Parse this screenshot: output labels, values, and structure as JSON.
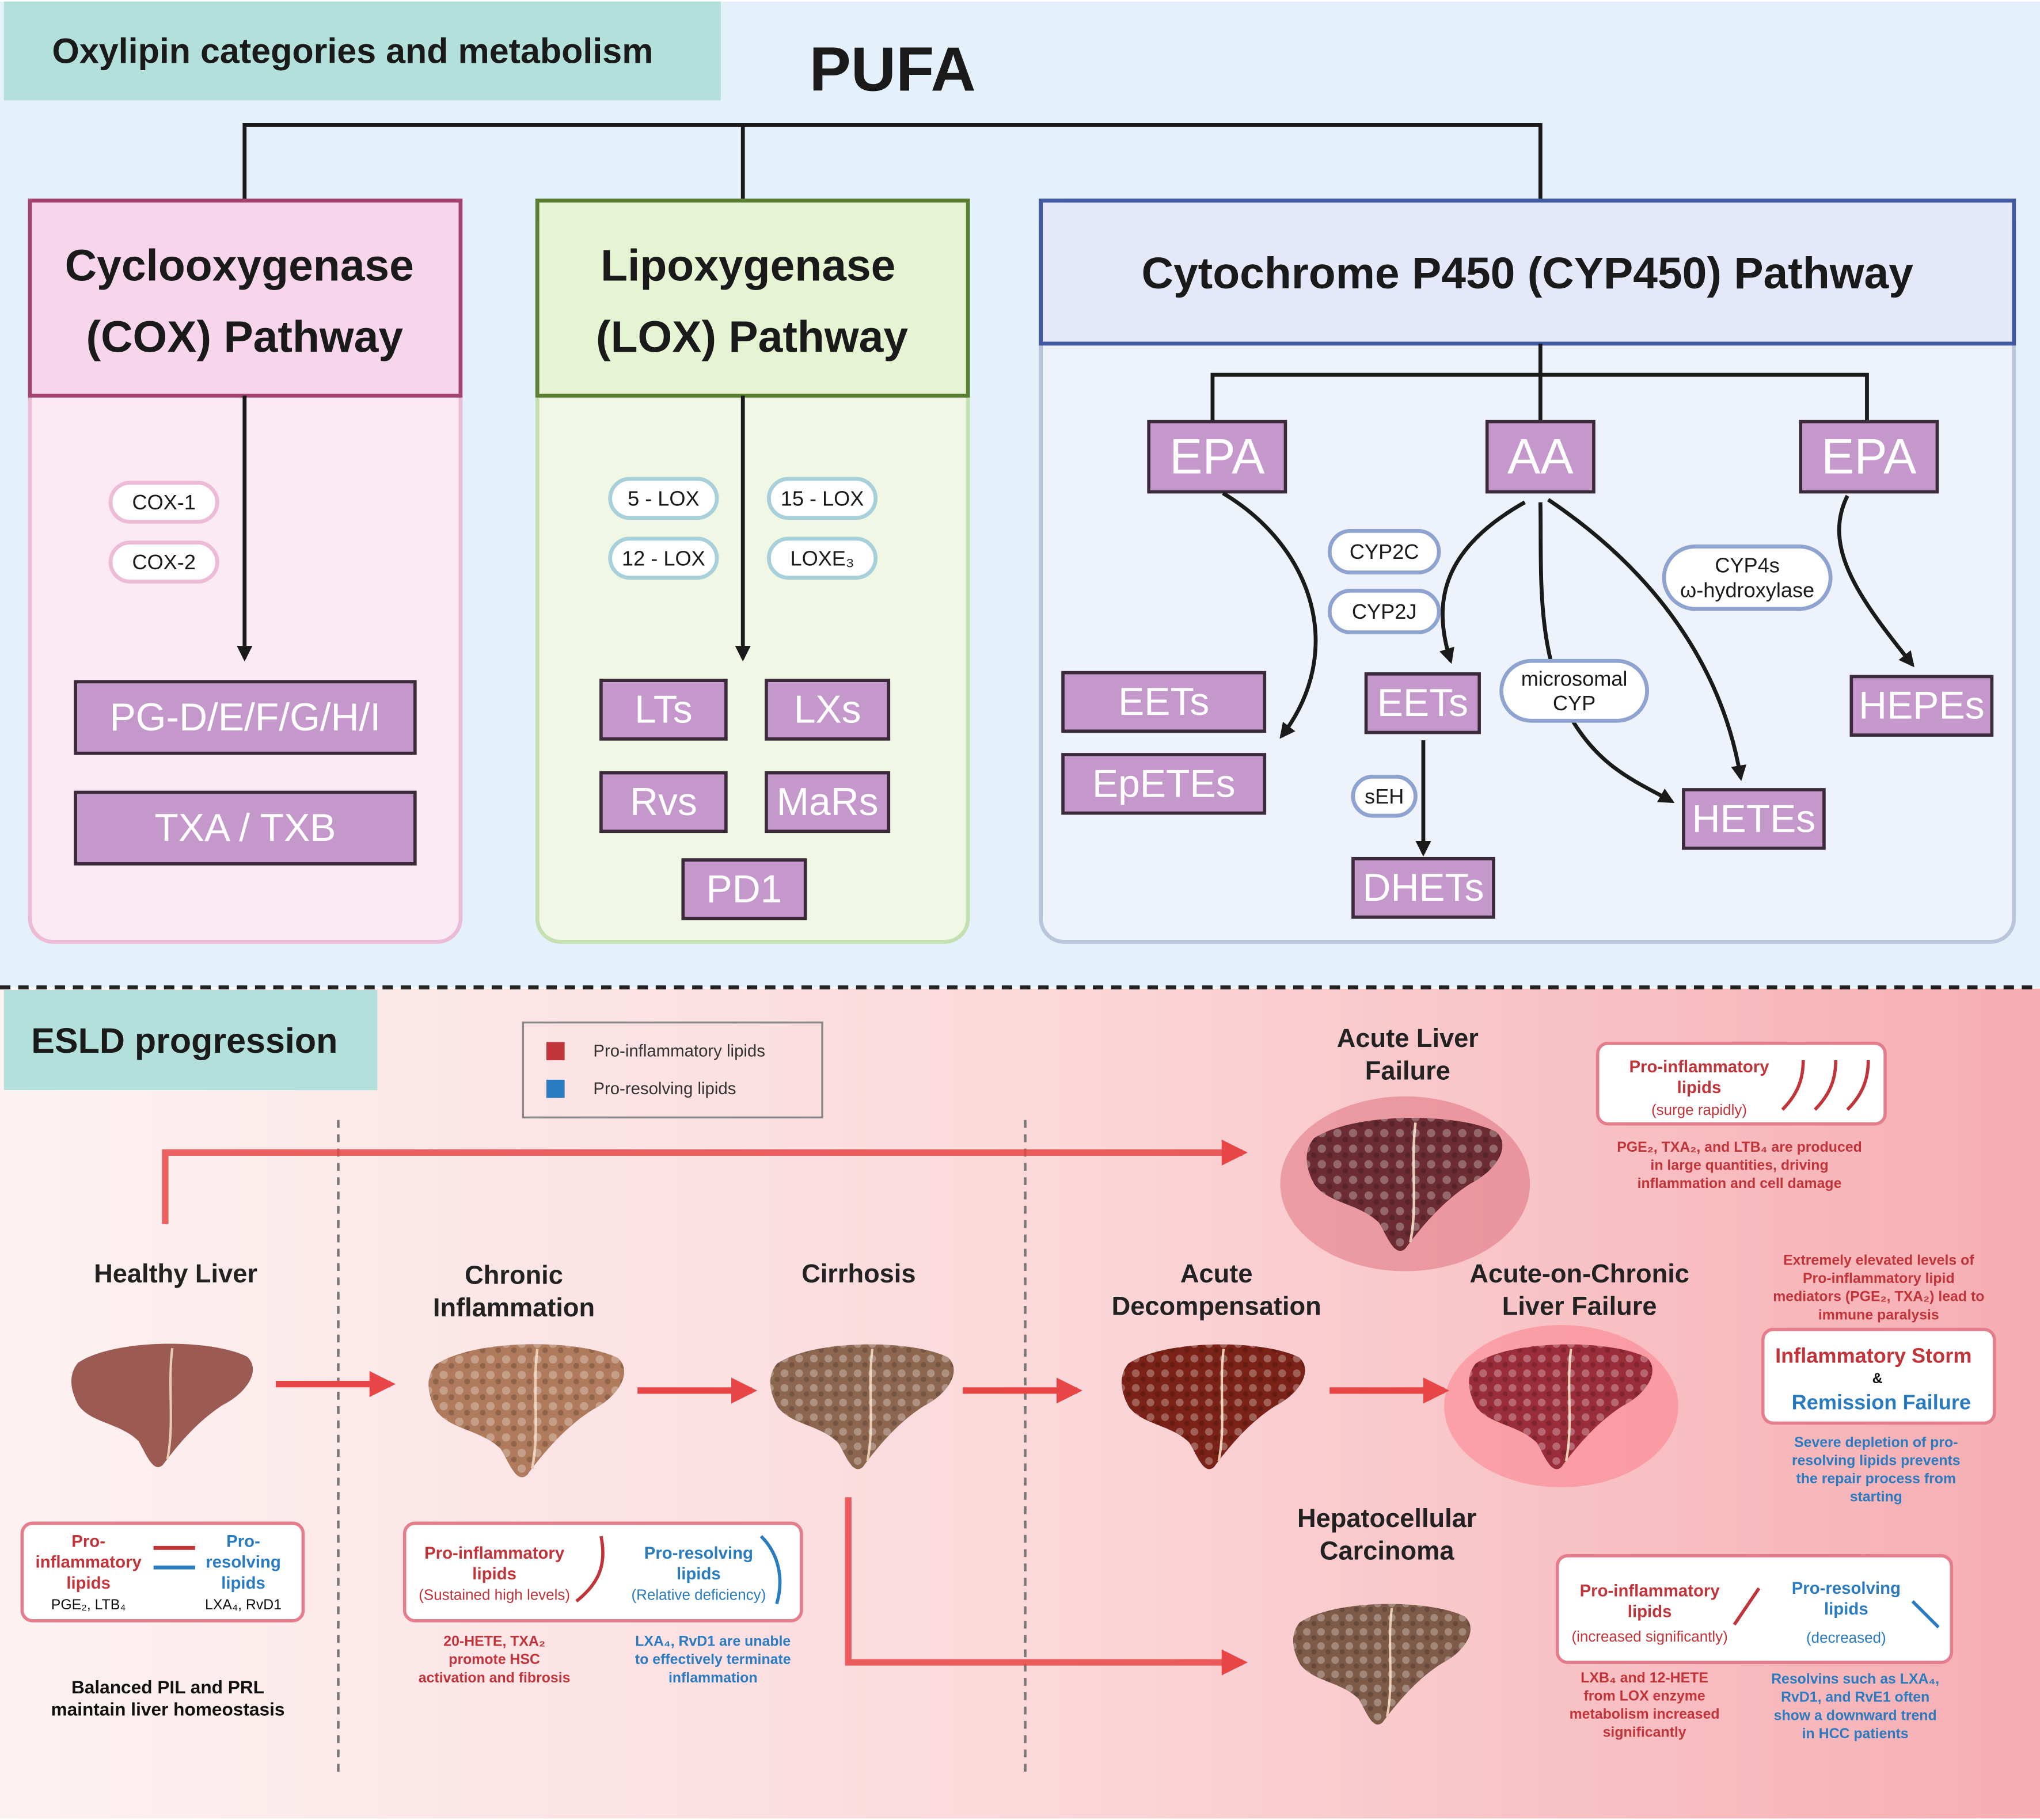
{
  "header": {
    "title": "Oxylipin categories and metabolism",
    "root": "PUFA"
  },
  "cox": {
    "title": [
      "Cyclooxygenase",
      "(COX) Pathway"
    ],
    "enzymes": [
      "COX-1",
      "COX-2"
    ],
    "products": [
      "PG-D/E/F/G/H/I",
      "TXA / TXB"
    ]
  },
  "lox": {
    "title": [
      "Lipoxygenase",
      "(LOX) Pathway"
    ],
    "enzymes": [
      "5 - LOX",
      "15 - LOX",
      "12 - LOX",
      "LOXE₃"
    ],
    "products": [
      "LTs",
      "LXs",
      "Rvs",
      "MaRs",
      "PD1"
    ]
  },
  "cyp": {
    "title": "Cytochrome P450 (CYP450) Pathway",
    "substrates": [
      "EPA",
      "AA",
      "EPA"
    ],
    "enzymes": [
      "CYP2C",
      "CYP2J",
      [
        "CYP4s",
        "ω-hydroxylase"
      ],
      [
        "microsomal",
        "CYP"
      ],
      "sEH"
    ],
    "products": [
      "EETs",
      "EpETEs",
      "EETs",
      "DHETs",
      "HETEs",
      "HEPEs"
    ]
  },
  "esld": {
    "title": "ESLD progression",
    "legend": [
      "Pro-inflammatory lipids",
      "Pro-resolving lipids"
    ],
    "stages": {
      "healthy": [
        "Healthy Liver"
      ],
      "chronic": [
        "Chronic",
        "Inflammation"
      ],
      "cirrhosis": [
        "Cirrhosis"
      ],
      "ad": [
        "Acute",
        "Decompensation"
      ],
      "aclf": [
        "Acute-on-Chronic",
        "Liver Failure"
      ],
      "alf": [
        "Acute Liver",
        "Failure"
      ],
      "hcc": [
        "Hepatocellular",
        "Carcinoma"
      ]
    },
    "healthy_box": {
      "pro": [
        "Pro-",
        "inflammatory",
        "lipids"
      ],
      "pro_examples": "PGE₂, LTB₄",
      "res": [
        "Pro-",
        "resolving",
        "lipids"
      ],
      "res_examples": "LXA₄, RvD1",
      "note": [
        "Balanced PIL and PRL",
        "maintain liver homeostasis"
      ]
    },
    "chronic_box": {
      "pro": [
        "Pro-inflammatory",
        "lipids"
      ],
      "pro_status": "(Sustained high levels)",
      "res": [
        "Pro-resolving",
        "lipids"
      ],
      "res_status": "(Relative deficiency)",
      "pro_note": [
        "20-HETE, TXA₂",
        "promote HSC",
        "activation and fibrosis"
      ],
      "res_note": [
        "LXA₄, RvD1 are unable",
        "to effectively terminate",
        "inflammation"
      ]
    },
    "alf_box": {
      "pro": [
        "Pro-inflammatory",
        "lipids"
      ],
      "pro_status": "(surge rapidly)",
      "note": [
        "PGE₂, TXA₂, and LTB₄ are produced",
        "in large quantities, driving",
        "inflammation and cell damage"
      ]
    },
    "aclf_box": {
      "pre_note": [
        "Extremely elevated levels of",
        "Pro-inflammatory lipid",
        "mediators (PGE₂, TXA₂) lead to",
        "immune paralysis"
      ],
      "storm": "Inflammatory Storm",
      "amp": "&",
      "failure": "Remission Failure",
      "note": [
        "Severe depletion of pro-",
        "resolving lipids prevents",
        "the repair process from",
        "starting"
      ]
    },
    "hcc_box": {
      "pro": [
        "Pro-inflammatory",
        "lipids"
      ],
      "pro_status": "(increased significantly)",
      "res": [
        "Pro-resolving",
        "lipids"
      ],
      "res_status": "(decreased)",
      "pro_note": [
        "LXB₄ and 12-HETE",
        "from LOX enzyme",
        "metabolism increased",
        "significantly"
      ],
      "res_note": [
        "Resolvins such as LXA₄,",
        "RvD1, and RvE1 often",
        "show a downward trend",
        "in HCC patients"
      ]
    }
  }
}
